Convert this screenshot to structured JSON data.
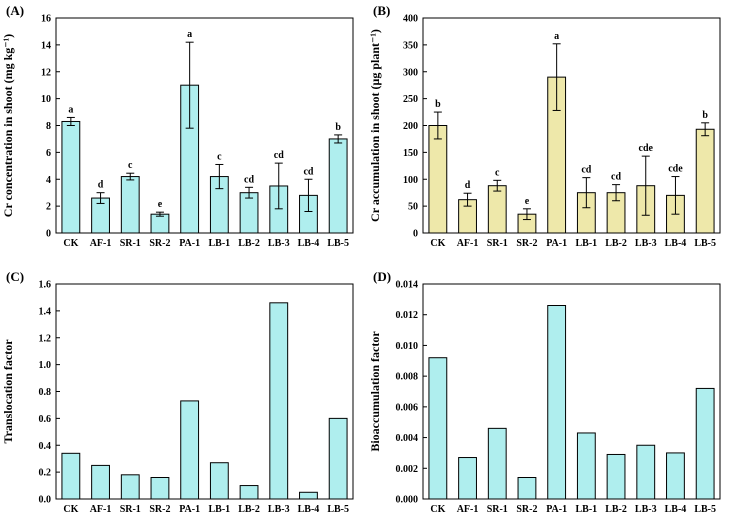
{
  "figure": {
    "background": "#ffffff",
    "axis_color": "#000000",
    "bar_border_color": "#000000"
  },
  "chart_data": [
    {
      "type": "bar",
      "panel_label": "(A)",
      "ylabel": "Cr concentration in shoot (mg kg⁻¹)",
      "xlabel": "",
      "bar_color": "#afeeee",
      "ylim": [
        0,
        16
      ],
      "yticks": [
        0,
        2,
        4,
        6,
        8,
        10,
        12,
        14,
        16
      ],
      "tick_decimals": 0,
      "grid": false,
      "legend": null,
      "categories": [
        "CK",
        "AF-1",
        "SR-1",
        "SR-2",
        "PA-1",
        "LB-1",
        "LB-2",
        "LB-3",
        "LB-4",
        "LB-5"
      ],
      "values": [
        8.3,
        2.6,
        4.2,
        1.4,
        11.0,
        4.2,
        3.0,
        3.5,
        2.8,
        7.0
      ],
      "errors": [
        0.3,
        0.4,
        0.25,
        0.15,
        3.2,
        0.9,
        0.4,
        1.7,
        1.2,
        0.3
      ],
      "letters": [
        "a",
        "d",
        "c",
        "e",
        "a",
        "c",
        "cd",
        "cd",
        "cd",
        "b"
      ]
    },
    {
      "type": "bar",
      "panel_label": "(B)",
      "ylabel": "Cr accumulation in shoot (μg plant⁻¹)",
      "xlabel": "",
      "bar_color": "#eee8aa",
      "ylim": [
        0,
        400
      ],
      "yticks": [
        0,
        50,
        100,
        150,
        200,
        250,
        300,
        350,
        400
      ],
      "tick_decimals": 0,
      "grid": false,
      "legend": null,
      "categories": [
        "CK",
        "AF-1",
        "SR-1",
        "SR-2",
        "PA-1",
        "LB-1",
        "LB-2",
        "LB-3",
        "LB-4",
        "LB-5"
      ],
      "values": [
        200,
        62,
        88,
        35,
        290,
        75,
        75,
        88,
        70,
        193
      ],
      "errors": [
        25,
        12,
        10,
        10,
        62,
        28,
        15,
        55,
        35,
        12
      ],
      "letters": [
        "b",
        "d",
        "c",
        "e",
        "a",
        "cd",
        "cd",
        "cde",
        "cde",
        "b"
      ]
    },
    {
      "type": "bar",
      "panel_label": "(C)",
      "ylabel": "Translocation factor",
      "xlabel": "",
      "bar_color": "#afeeee",
      "ylim": [
        0,
        1.6
      ],
      "yticks": [
        0,
        0.2,
        0.4,
        0.6,
        0.8,
        1.0,
        1.2,
        1.4,
        1.6
      ],
      "tick_decimals": 1,
      "grid": false,
      "legend": null,
      "categories": [
        "CK",
        "AF-1",
        "SR-1",
        "SR-2",
        "PA-1",
        "LB-1",
        "LB-2",
        "LB-3",
        "LB-4",
        "LB-5"
      ],
      "values": [
        0.34,
        0.25,
        0.18,
        0.16,
        0.73,
        0.27,
        0.1,
        1.46,
        0.05,
        0.6
      ],
      "errors": null,
      "letters": null
    },
    {
      "type": "bar",
      "panel_label": "(D)",
      "ylabel": "Bioaccumulation factor",
      "xlabel": "",
      "bar_color": "#afeeee",
      "ylim": [
        0,
        0.014
      ],
      "yticks": [
        0,
        0.002,
        0.004,
        0.006,
        0.008,
        0.01,
        0.012,
        0.014
      ],
      "tick_decimals": 3,
      "grid": false,
      "legend": null,
      "categories": [
        "CK",
        "AF-1",
        "SR-1",
        "SR-2",
        "PA-1",
        "LB-1",
        "LB-2",
        "LB-3",
        "LB-4",
        "LB-5"
      ],
      "values": [
        0.0092,
        0.0027,
        0.0046,
        0.0014,
        0.0126,
        0.0043,
        0.0029,
        0.0035,
        0.003,
        0.0072
      ],
      "errors": null,
      "letters": null
    }
  ]
}
